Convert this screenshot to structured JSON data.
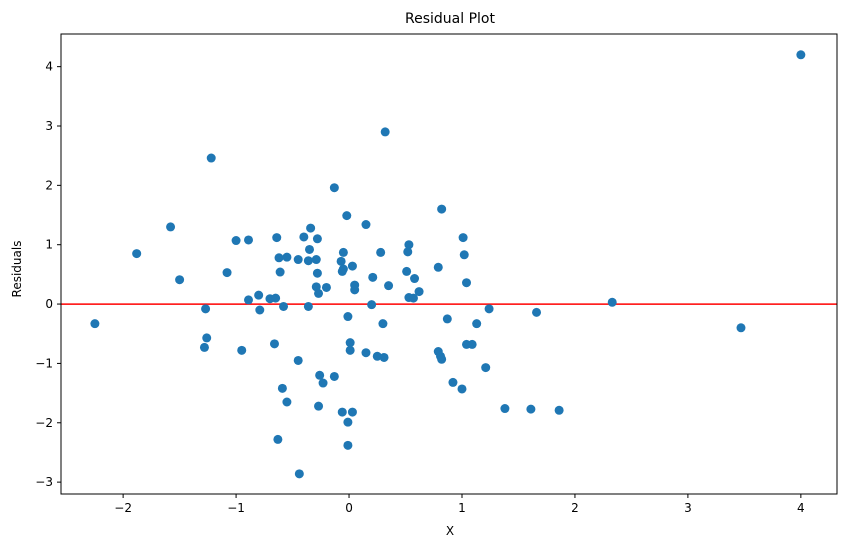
{
  "chart_data": {
    "type": "scatter",
    "title": "Residual Plot",
    "xlabel": "X",
    "ylabel": "Residuals",
    "xlim": [
      -2.55,
      4.32
    ],
    "ylim": [
      -3.2,
      4.55
    ],
    "x_ticks": [
      -2,
      -1,
      0,
      1,
      2,
      3,
      4
    ],
    "y_ticks": [
      -3,
      -2,
      -1,
      0,
      1,
      2,
      3,
      4
    ],
    "x_tick_labels": [
      "−2",
      "−1",
      "0",
      "1",
      "2",
      "3",
      "4"
    ],
    "y_tick_labels": [
      "−3",
      "−2",
      "−1",
      "0",
      "1",
      "2",
      "3",
      "4"
    ],
    "grid": false,
    "reference_line": {
      "y": 0,
      "color": "#ff0000"
    },
    "point_color": "#1f77b4",
    "points": [
      [
        -2.25,
        -0.33
      ],
      [
        -1.88,
        0.85
      ],
      [
        -1.58,
        1.3
      ],
      [
        -1.5,
        0.41
      ],
      [
        -1.27,
        -0.08
      ],
      [
        -1.26,
        -0.57
      ],
      [
        -1.28,
        -0.73
      ],
      [
        -1.22,
        2.46
      ],
      [
        -1.08,
        0.53
      ],
      [
        -1.0,
        1.07
      ],
      [
        -0.95,
        -0.78
      ],
      [
        -0.89,
        1.08
      ],
      [
        -0.89,
        0.07
      ],
      [
        -0.8,
        0.15
      ],
      [
        -0.79,
        -0.1
      ],
      [
        -0.7,
        0.09
      ],
      [
        -0.65,
        0.1
      ],
      [
        -0.66,
        -0.67
      ],
      [
        -0.64,
        1.12
      ],
      [
        -0.62,
        0.78
      ],
      [
        -0.61,
        0.54
      ],
      [
        -0.58,
        -0.04
      ],
      [
        -0.59,
        -1.42
      ],
      [
        -0.55,
        0.79
      ],
      [
        -0.55,
        -1.65
      ],
      [
        -0.63,
        -2.28
      ],
      [
        -0.45,
        0.75
      ],
      [
        -0.45,
        -0.95
      ],
      [
        -0.44,
        -2.86
      ],
      [
        -0.4,
        1.13
      ],
      [
        -0.36,
        0.73
      ],
      [
        -0.34,
        1.28
      ],
      [
        -0.35,
        0.92
      ],
      [
        -0.36,
        -0.04
      ],
      [
        -0.28,
        1.1
      ],
      [
        -0.29,
        0.75
      ],
      [
        -0.28,
        0.52
      ],
      [
        -0.29,
        0.29
      ],
      [
        -0.27,
        0.18
      ],
      [
        -0.26,
        -1.2
      ],
      [
        -0.27,
        -1.72
      ],
      [
        -0.23,
        -1.33
      ],
      [
        -0.2,
        0.28
      ],
      [
        -0.13,
        1.96
      ],
      [
        -0.13,
        -1.22
      ],
      [
        -0.07,
        0.72
      ],
      [
        -0.06,
        0.55
      ],
      [
        -0.05,
        0.59
      ],
      [
        -0.05,
        0.87
      ],
      [
        -0.06,
        -1.82
      ],
      [
        -0.02,
        1.49
      ],
      [
        -0.01,
        -0.21
      ],
      [
        -0.01,
        -1.99
      ],
      [
        -0.01,
        -2.38
      ],
      [
        0.01,
        -0.65
      ],
      [
        0.01,
        -0.78
      ],
      [
        0.03,
        0.64
      ],
      [
        0.05,
        0.32
      ],
      [
        0.05,
        0.24
      ],
      [
        0.03,
        -1.82
      ],
      [
        0.15,
        1.34
      ],
      [
        0.15,
        -0.82
      ],
      [
        0.21,
        0.45
      ],
      [
        0.2,
        -0.01
      ],
      [
        0.25,
        -0.88
      ],
      [
        0.28,
        0.87
      ],
      [
        0.3,
        -0.33
      ],
      [
        0.31,
        -0.9
      ],
      [
        0.32,
        2.9
      ],
      [
        0.35,
        0.31
      ],
      [
        0.51,
        0.55
      ],
      [
        0.52,
        0.88
      ],
      [
        0.53,
        1.0
      ],
      [
        0.53,
        0.11
      ],
      [
        0.57,
        0.1
      ],
      [
        0.58,
        0.43
      ],
      [
        0.62,
        0.21
      ],
      [
        0.79,
        0.62
      ],
      [
        0.79,
        -0.8
      ],
      [
        0.81,
        -0.88
      ],
      [
        0.82,
        1.6
      ],
      [
        0.82,
        -0.93
      ],
      [
        0.87,
        -0.25
      ],
      [
        0.92,
        -1.32
      ],
      [
        1.0,
        -1.43
      ],
      [
        1.01,
        1.12
      ],
      [
        1.02,
        0.83
      ],
      [
        1.04,
        0.36
      ],
      [
        1.04,
        -0.68
      ],
      [
        1.09,
        -0.68
      ],
      [
        1.13,
        -0.33
      ],
      [
        1.21,
        -1.07
      ],
      [
        1.24,
        -0.08
      ],
      [
        1.38,
        -1.76
      ],
      [
        1.61,
        -1.77
      ],
      [
        1.66,
        -0.14
      ],
      [
        1.86,
        -1.79
      ],
      [
        2.33,
        0.03
      ],
      [
        3.47,
        -0.4
      ],
      [
        4.0,
        4.2
      ]
    ]
  }
}
